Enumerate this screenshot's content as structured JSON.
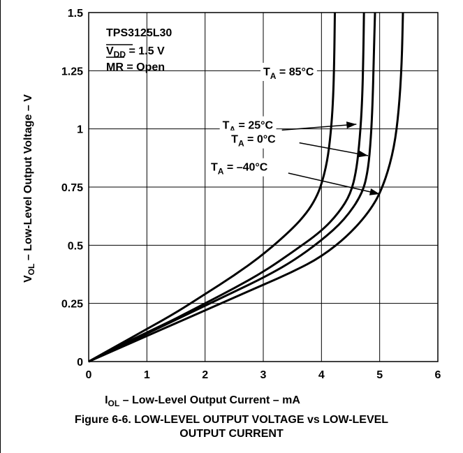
{
  "chart_data": {
    "type": "line",
    "title": "",
    "xlabel": {
      "main": "I",
      "sub": "OL",
      "rest": " – Low-Level Output Current – mA"
    },
    "ylabel": {
      "main": "V",
      "sub": "OL",
      "rest": " – Low-Level Output Voltage – V"
    },
    "xlim": [
      0,
      6
    ],
    "ylim": [
      0,
      1.5
    ],
    "x_ticks": [
      "0",
      "1",
      "2",
      "3",
      "4",
      "5",
      "6"
    ],
    "y_ticks": [
      "0",
      "0.25",
      "0.5",
      "0.75",
      "1",
      "1.25",
      "1.5"
    ],
    "grid": true,
    "device_box": {
      "line1": "TPS3125L30",
      "line2_main": "V",
      "line2_sub": "DD",
      "line2_rest": " = 1.5 V",
      "line3_bar": "MR",
      "line3_rest": " = Open"
    },
    "series": [
      {
        "name": "T_A = 85°C",
        "label_main": "T",
        "label_sub": "A",
        "label_rest": " = 85°C",
        "x": [
          0,
          0.5,
          1,
          1.5,
          2,
          2.5,
          3,
          3.5,
          3.75,
          3.9,
          4.0,
          4.1,
          4.16,
          4.2,
          4.22,
          4.23
        ],
        "y": [
          0,
          0.07,
          0.14,
          0.21,
          0.29,
          0.37,
          0.46,
          0.57,
          0.64,
          0.7,
          0.76,
          0.86,
          0.98,
          1.12,
          1.3,
          1.5
        ]
      },
      {
        "name": "T_A = 25°C",
        "label_main": "T",
        "label_sub": "A",
        "label_rest": " = 25°C",
        "x": [
          0,
          0.5,
          1,
          1.5,
          2,
          2.5,
          3,
          3.5,
          4.0,
          4.3,
          4.5,
          4.6,
          4.66,
          4.7,
          4.72,
          4.73
        ],
        "y": [
          0,
          0.065,
          0.125,
          0.185,
          0.25,
          0.315,
          0.385,
          0.47,
          0.56,
          0.64,
          0.72,
          0.82,
          0.96,
          1.12,
          1.32,
          1.5
        ]
      },
      {
        "name": "T_A = 0°C",
        "label_main": "T",
        "label_sub": "A",
        "label_rest": " = 0°C",
        "x": [
          0,
          0.5,
          1,
          1.5,
          2,
          2.5,
          3,
          3.5,
          4.0,
          4.4,
          4.7,
          4.8,
          4.85,
          4.88,
          4.9,
          4.92
        ],
        "y": [
          0,
          0.06,
          0.12,
          0.18,
          0.24,
          0.3,
          0.36,
          0.43,
          0.52,
          0.61,
          0.72,
          0.82,
          0.96,
          1.12,
          1.32,
          1.5
        ]
      },
      {
        "name": "T_A = –40°C",
        "label_main": "T",
        "label_sub": "A",
        "label_rest": " = –40°C",
        "x": [
          0,
          0.5,
          1,
          1.5,
          2,
          2.5,
          3,
          3.5,
          4.0,
          4.5,
          4.9,
          5.1,
          5.25,
          5.33,
          5.38,
          5.4
        ],
        "y": [
          0,
          0.055,
          0.11,
          0.165,
          0.22,
          0.275,
          0.33,
          0.385,
          0.45,
          0.55,
          0.67,
          0.78,
          0.92,
          1.08,
          1.28,
          1.5
        ]
      }
    ],
    "label_arrows": [
      {
        "series": 0,
        "from": [
          2.7,
          1.25
        ],
        "to": null
      },
      {
        "series": 1,
        "from": [
          2.6,
          1.0
        ],
        "to": [
          4.55,
          1.02
        ]
      },
      {
        "series": 2,
        "from": [
          3.7,
          0.95
        ],
        "to": [
          4.8,
          0.89
        ]
      },
      {
        "series": 3,
        "from": [
          3.5,
          0.76
        ],
        "to": [
          5.0,
          0.72
        ]
      }
    ]
  },
  "caption": {
    "line1": "Figure 6-6. LOW-LEVEL OUTPUT VOLTAGE vs LOW-LEVEL",
    "line2": "OUTPUT CURRENT"
  }
}
